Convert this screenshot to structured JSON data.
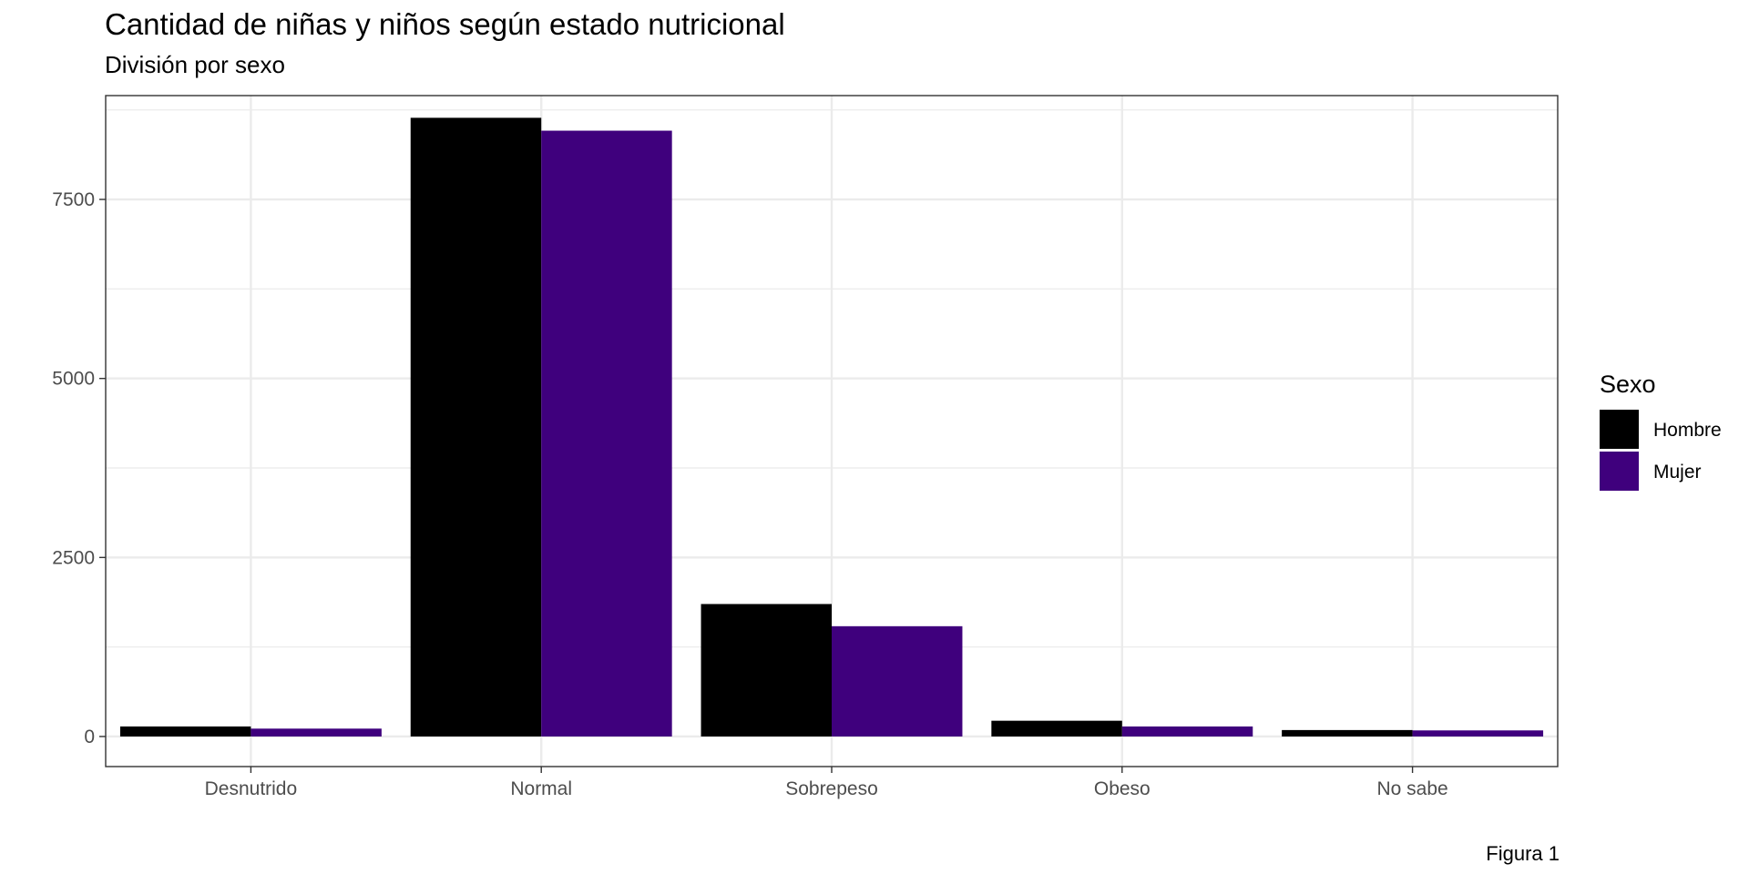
{
  "chart_data": {
    "type": "bar",
    "title": "Cantidad de niñas y niños según estado nutricional",
    "subtitle": "División por sexo",
    "caption": "Figura 1",
    "categories": [
      "Desnutrido",
      "Normal",
      "Sobrepeso",
      "Obeso",
      "No sabe"
    ],
    "series": [
      {
        "name": "Hombre",
        "color": "#000000",
        "values": [
          140,
          8640,
          1850,
          220,
          90
        ]
      },
      {
        "name": "Mujer",
        "color": "#3f007d",
        "values": [
          110,
          8460,
          1540,
          140,
          85
        ]
      }
    ],
    "xlabel": "",
    "ylabel": "",
    "ylim": [
      -420,
      8950
    ],
    "yticks": [
      0,
      2500,
      5000,
      7500
    ],
    "yticks_labels": [
      "0",
      "2500",
      "5000",
      "7500"
    ],
    "grid": true,
    "legend": {
      "title": "Sexo",
      "position": "right"
    }
  }
}
